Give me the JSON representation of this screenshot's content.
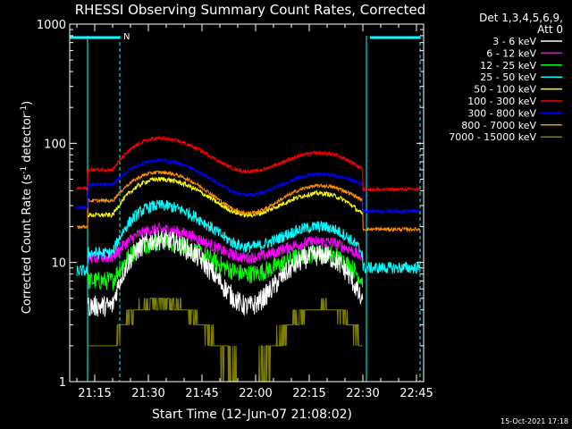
{
  "chart_data": {
    "type": "line",
    "title": "RHESSI Observing Summary Count Rates, Corrected",
    "xlabel": "Start Time (12-Jun-07 21:08:02)",
    "ylabel_main": "Corrected Count Rate (s",
    "ylabel_sup1": "-1",
    "ylabel_mid": " detector",
    "ylabel_sup2": "-1",
    "ylabel_end": ")",
    "yscale": "log",
    "xlim": [
      "21:08",
      "22:47"
    ],
    "ylim": [
      1,
      1000
    ],
    "x_ticks": [
      "21:15",
      "21:30",
      "21:45",
      "22:00",
      "22:15",
      "22:30",
      "22:45"
    ],
    "y_ticks": [
      "1",
      "10",
      "100",
      "1000"
    ],
    "legend_header": [
      "Det 1,3,4,5,6,9,",
      "Att 0"
    ],
    "legend_position": "right",
    "footer_date": "15-Oct-2021 17:18",
    "markers": {
      "night_bars": [
        {
          "from": "21:08",
          "to": "21:22",
          "label": ""
        },
        {
          "from": "22:32",
          "to": "22:46",
          "label": ""
        }
      ],
      "saa_label": "N",
      "solid_lines": [
        "21:13",
        "22:31"
      ],
      "dashed_lines": [
        "21:22",
        "22:46"
      ]
    },
    "curve_shape": {
      "start": "21:13",
      "end": "22:30",
      "rise": "21:20",
      "peak1": "21:33",
      "trough": "21:58",
      "peak2": "22:18"
    },
    "series": [
      {
        "name": "3 - 6 keV",
        "color": "#ffffff",
        "before": 0,
        "base": 4.3,
        "peak1": 15.5,
        "trough": 4.3,
        "peak2": 11.5,
        "after": 0,
        "noise": 0.09
      },
      {
        "name": "6 - 12 keV",
        "color": "#ff00ff",
        "before": 0,
        "base": 11,
        "peak1": 19,
        "trough": 11,
        "peak2": 15,
        "after": 0,
        "noise": 0.05
      },
      {
        "name": "12 - 25 keV",
        "color": "#00ff00",
        "before": 0,
        "base": 7,
        "peak1": 15,
        "trough": 8,
        "peak2": 12,
        "after": 0,
        "noise": 0.08
      },
      {
        "name": "25 - 50 keV",
        "color": "#00ffff",
        "before": 8.5,
        "base": 12,
        "peak1": 30,
        "trough": 13.5,
        "peak2": 20,
        "after": 9,
        "noise": 0.05
      },
      {
        "name": "50 - 100 keV",
        "color": "#ffff00",
        "before": 0,
        "base": 25,
        "peak1": 50,
        "trough": 25,
        "peak2": 38,
        "after": 0,
        "noise": 0.02
      },
      {
        "name": "100 - 300 keV",
        "color": "#ff0000",
        "before": 42,
        "base": 60,
        "peak1": 110,
        "trough": 58,
        "peak2": 83,
        "after": 41,
        "noise": 0.015
      },
      {
        "name": "300 - 800 keV",
        "color": "#0000ff",
        "before": 29,
        "base": 45,
        "peak1": 72,
        "trough": 37,
        "peak2": 55,
        "after": 27,
        "noise": 0.015
      },
      {
        "name": "800 - 7000 keV",
        "color": "#ff8c00",
        "before": 20,
        "base": 33,
        "peak1": 57,
        "trough": 26,
        "peak2": 44,
        "after": 19,
        "noise": 0.015
      },
      {
        "name": "7000 - 15000 keV",
        "color": "#808000",
        "before": 0,
        "base": 2,
        "peak1": 4.7,
        "trough": 1,
        "peak2": 4.2,
        "after": 0,
        "noise": 0
      }
    ]
  }
}
